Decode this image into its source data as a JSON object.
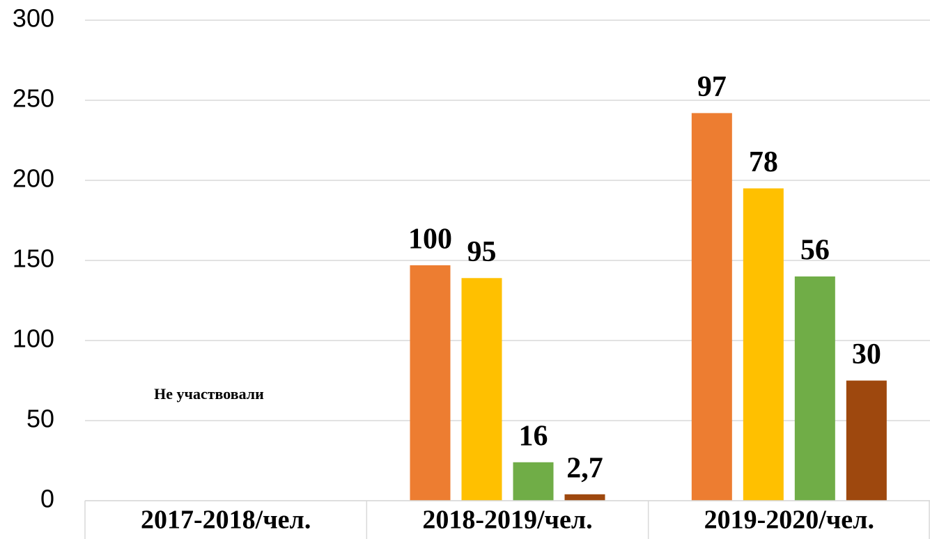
{
  "chart_data": {
    "type": "bar",
    "categories": [
      "2017-2018/чел.",
      "2018-2019/чел.",
      "2019-2020/чел."
    ],
    "series": [
      {
        "color": "#ED7D31",
        "values": [
          null,
          147,
          242
        ],
        "data_labels": [
          null,
          "100",
          "97"
        ]
      },
      {
        "color": "#FFC000",
        "values": [
          null,
          139,
          195
        ],
        "data_labels": [
          null,
          "95",
          "78"
        ]
      },
      {
        "color": "#70AD47",
        "values": [
          null,
          24,
          140
        ],
        "data_labels": [
          null,
          "16",
          "56"
        ]
      },
      {
        "color": "#9E480E",
        "values": [
          null,
          4,
          75
        ],
        "data_labels": [
          null,
          "2,7",
          "30"
        ]
      }
    ],
    "annotation": "Не участвовали",
    "ylim": [
      0,
      300
    ],
    "yticks": [
      0,
      50,
      100,
      150,
      200,
      250,
      300
    ],
    "grid": true
  }
}
